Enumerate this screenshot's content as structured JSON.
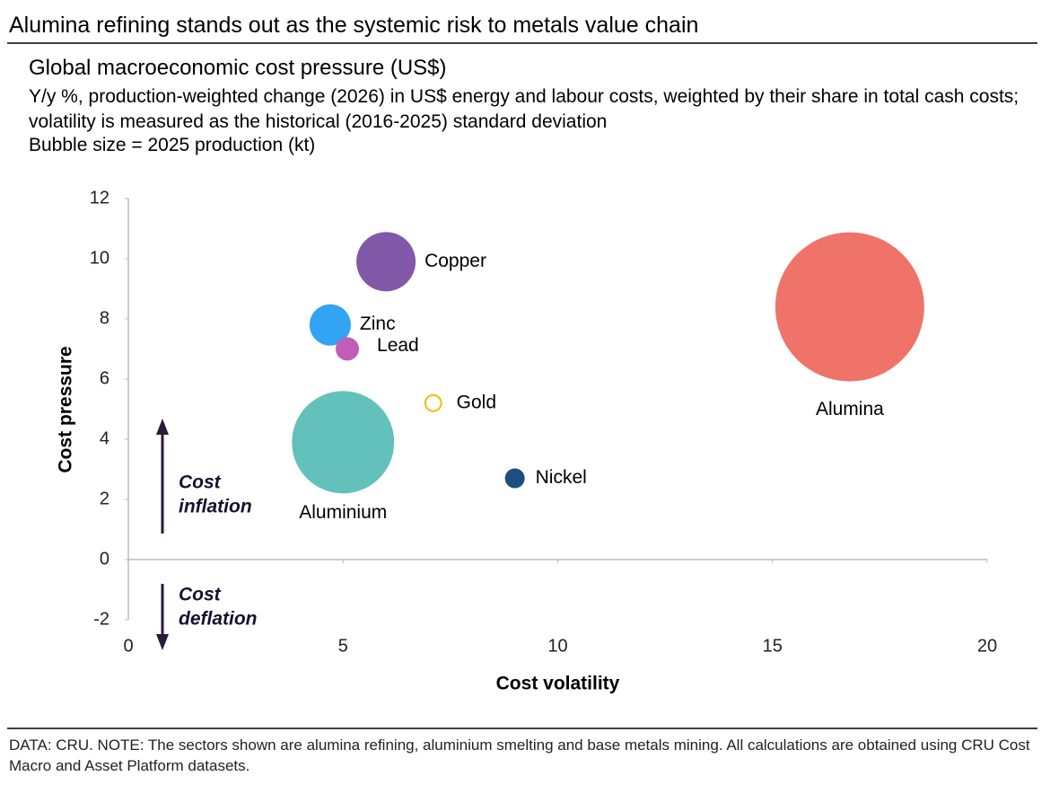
{
  "header": {
    "title": "Alumina refining stands out as the systemic risk to metals value chain"
  },
  "chart_data": {
    "type": "bubble",
    "title": "Global macroeconomic cost pressure (US$)",
    "subtitle": "Y/y %, production-weighted change (2026) in US$ energy and labour costs, weighted by their share in total cash costs; volatility is measured as the historical (2016-2025) standard deviation",
    "size_note": "Bubble size = 2025 production (kt)",
    "xlabel": "Cost volatility",
    "ylabel": "Cost pressure",
    "xlim": [
      0,
      20
    ],
    "xticks": [
      0,
      5,
      10,
      15,
      20
    ],
    "ylim": [
      -2,
      12
    ],
    "yticks": [
      -2,
      0,
      2,
      4,
      6,
      8,
      10,
      12
    ],
    "points": [
      {
        "name": "Copper",
        "color": "#8159a8",
        "x": 6.0,
        "y": 9.9,
        "size": 22100
      },
      {
        "name": "Zinc",
        "color": "#33a3f4",
        "x": 4.7,
        "y": 7.8,
        "size": 10750
      },
      {
        "name": "Lead",
        "color": "#c05db5",
        "x": 5.1,
        "y": 7.0,
        "size": 3430
      },
      {
        "name": "Gold",
        "color": "#f2bd00",
        "x": 7.1,
        "y": 5.2,
        "size": 2000,
        "hollow": true
      },
      {
        "name": "Aluminium",
        "color": "#62c1bb",
        "x": 5.0,
        "y": 3.9,
        "size": 66000
      },
      {
        "name": "Nickel",
        "color": "#1b4f7d",
        "x": 9.0,
        "y": 2.7,
        "size": 2460
      },
      {
        "name": "Alumina",
        "color": "#f0736a",
        "x": 16.8,
        "y": 8.4,
        "size": 140000
      }
    ],
    "annotations": [
      {
        "lines": [
          "Cost",
          "inflation"
        ],
        "direction": "up"
      },
      {
        "lines": [
          "Cost",
          "deflation"
        ],
        "direction": "down"
      }
    ]
  },
  "footer": {
    "note": "DATA: CRU. NOTE: The sectors shown are alumina refining, aluminium smelting and base metals mining. All calculations are obtained using CRU Cost Macro and Asset Platform datasets."
  }
}
